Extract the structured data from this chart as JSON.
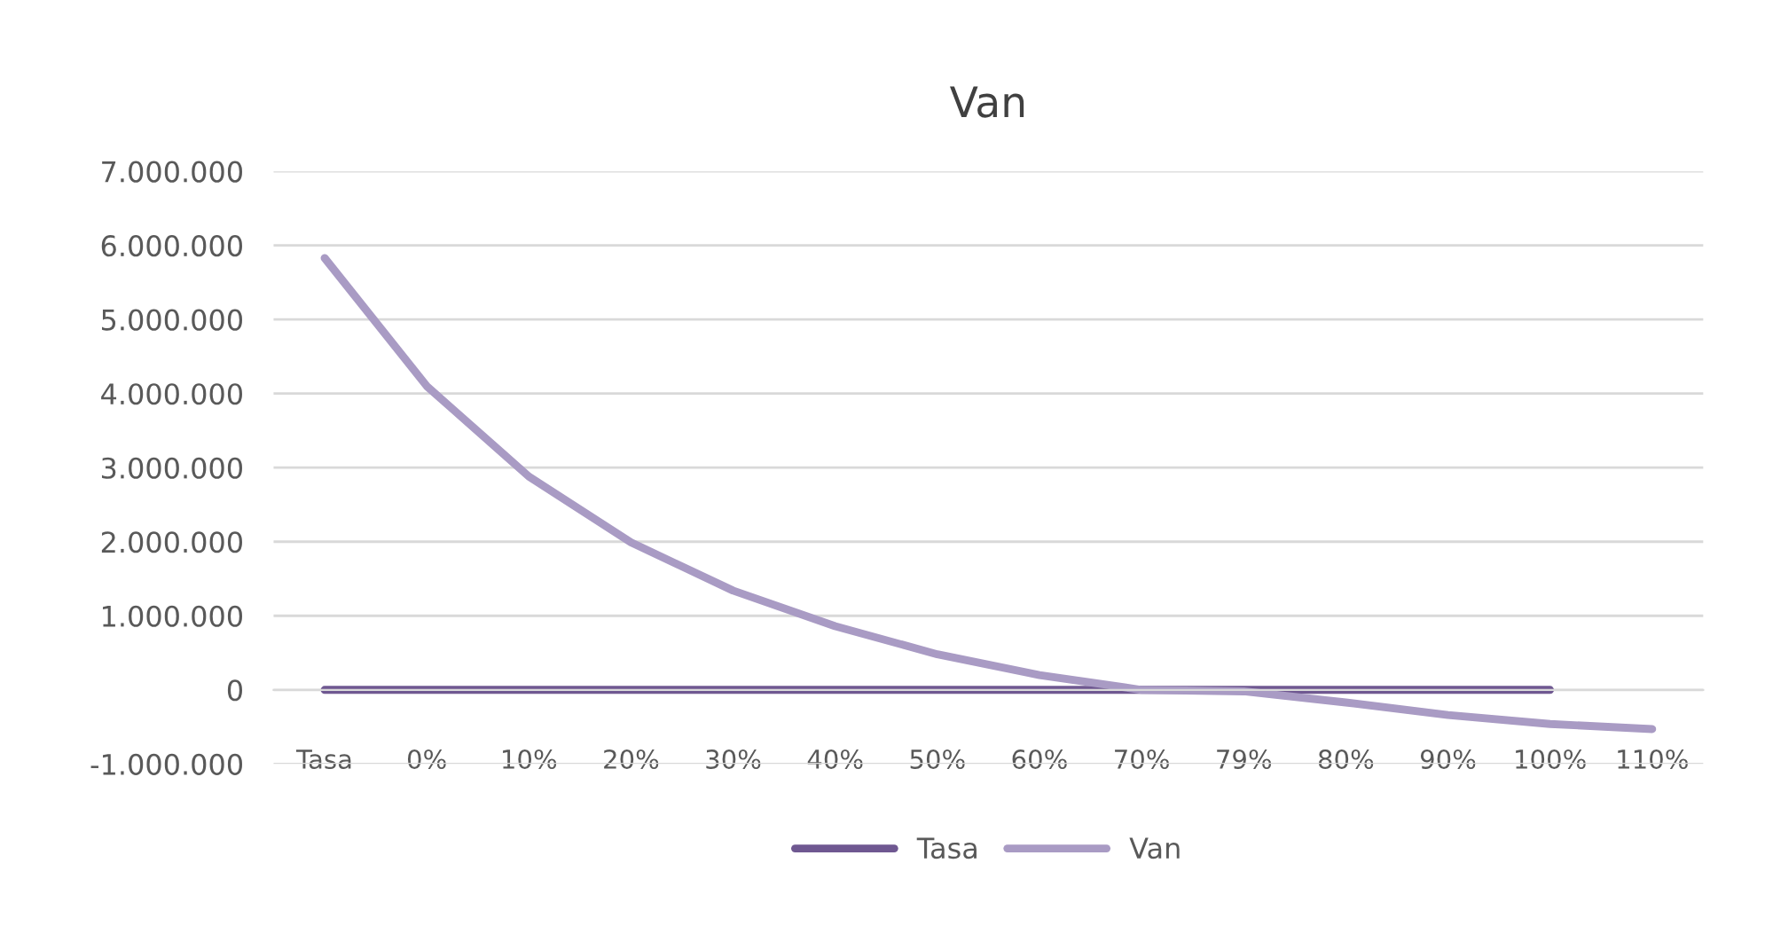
{
  "chart_data": {
    "type": "line",
    "title": "Van",
    "categories": [
      "Tasa",
      "0%",
      "10%",
      "20%",
      "30%",
      "40%",
      "50%",
      "60%",
      "70%",
      "79%",
      "80%",
      "90%",
      "100%",
      "110%"
    ],
    "series": [
      {
        "name": "Tasa",
        "color": "#6f5891",
        "values": [
          0,
          0,
          0,
          0,
          0,
          0,
          0,
          0,
          0,
          0,
          0,
          0,
          0,
          null
        ]
      },
      {
        "name": "Van",
        "color": "#a99bc4",
        "values": [
          5830000,
          4100000,
          2880000,
          1990000,
          1340000,
          860000,
          480000,
          200000,
          0,
          -20000,
          -170000,
          -340000,
          -460000,
          -530000
        ]
      }
    ],
    "ylim": [
      -1000000,
      7000000
    ],
    "yticks": [
      {
        "value": 7000000,
        "label": "7.000.000"
      },
      {
        "value": 6000000,
        "label": "6.000.000"
      },
      {
        "value": 5000000,
        "label": "5.000.000"
      },
      {
        "value": 4000000,
        "label": "4.000.000"
      },
      {
        "value": 3000000,
        "label": "3.000.000"
      },
      {
        "value": 2000000,
        "label": "2.000.000"
      },
      {
        "value": 1000000,
        "label": "1.000.000"
      },
      0,
      {
        "value": -1000000,
        "label": "-1.000.000"
      }
    ],
    "grid": "y",
    "legend": "bottom",
    "marker": "none",
    "line_style": "solid"
  }
}
